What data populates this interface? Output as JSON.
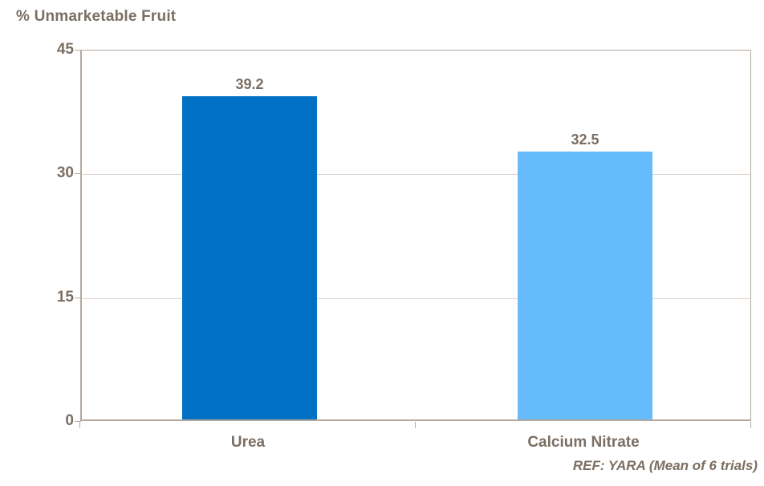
{
  "colors": {
    "background": "#FFFFFF",
    "text": "#7B6E62",
    "axis_line": "#B3A99F",
    "gridline": "#D8D2CB",
    "bar_urea": "#0071C5",
    "bar_calcium_nitrate": "#66BBFA"
  },
  "chart_data": {
    "type": "bar",
    "title": "% Unmarketable Fruit",
    "categories": [
      "Urea",
      "Calcium Nitrate"
    ],
    "values": [
      39.2,
      32.5
    ],
    "data_labels": [
      "39.2",
      "32.5"
    ],
    "bar_colors": [
      "#0071C5",
      "#66BBFA"
    ],
    "xlabel": "",
    "ylabel": "% Unmarketable Fruit",
    "ylim": [
      0,
      45
    ],
    "yticks": [
      0,
      15,
      30,
      45
    ],
    "grid": "horizontal-on",
    "legend": "none",
    "footnote": "REF: YARA (Mean of 6 trials)"
  }
}
